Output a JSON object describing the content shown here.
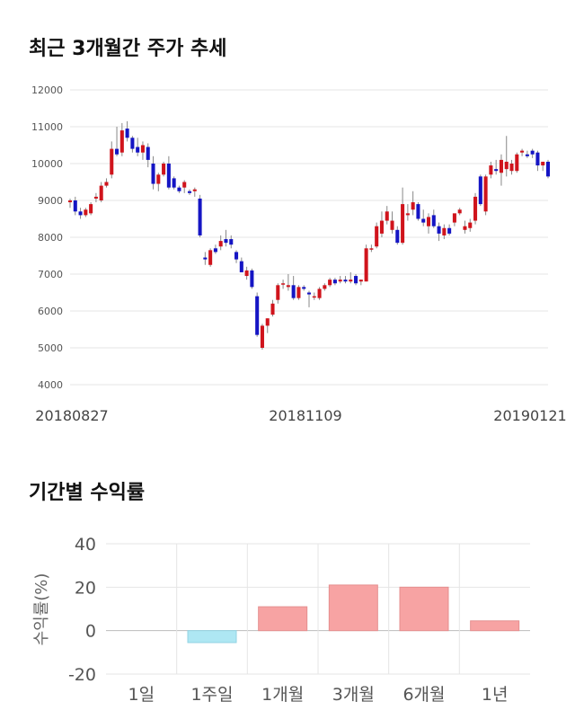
{
  "sections": {
    "price_title": "최근 3개월간 주가 추세",
    "returns_title": "기간별 수익률"
  },
  "chart_data": [
    {
      "type": "candlestick",
      "ylim": [
        4000,
        12000
      ],
      "yticks": [
        "12000",
        "11000",
        "10000",
        "9000",
        "8000",
        "7000",
        "6000",
        "5000",
        "4000"
      ],
      "xtick_labels": [
        "20180827",
        "20181109",
        "20190121"
      ],
      "grid": true,
      "colors": {
        "up": "#d0141c",
        "down": "#1515c4",
        "wick": "#888888",
        "grid": "#e5e5e5"
      },
      "ohlc": [
        [
          8950,
          9050,
          8800,
          9000
        ],
        [
          9000,
          9100,
          8600,
          8700
        ],
        [
          8700,
          8800,
          8500,
          8600
        ],
        [
          8600,
          8800,
          8550,
          8750
        ],
        [
          8650,
          8950,
          8600,
          8900
        ],
        [
          9050,
          9200,
          8950,
          9100
        ],
        [
          9000,
          9500,
          8950,
          9400
        ],
        [
          9400,
          9600,
          9350,
          9500
        ],
        [
          9700,
          10600,
          9600,
          10400
        ],
        [
          10400,
          11000,
          10200,
          10250
        ],
        [
          10300,
          11100,
          10200,
          10900
        ],
        [
          10950,
          11150,
          10600,
          10700
        ],
        [
          10700,
          10750,
          10300,
          10400
        ],
        [
          10450,
          10700,
          10200,
          10300
        ],
        [
          10300,
          10600,
          10100,
          10500
        ],
        [
          10450,
          10550,
          9900,
          10100
        ],
        [
          10000,
          10200,
          9300,
          9450
        ],
        [
          9450,
          9750,
          9250,
          9700
        ],
        [
          9700,
          10050,
          9650,
          10000
        ],
        [
          10000,
          10200,
          9300,
          9350
        ],
        [
          9600,
          9650,
          9300,
          9350
        ],
        [
          9350,
          9400,
          9200,
          9250
        ],
        [
          9350,
          9550,
          9200,
          9500
        ],
        [
          9250,
          9300,
          9150,
          9200
        ],
        [
          9250,
          9350,
          9100,
          9300
        ],
        [
          9050,
          9150,
          8000,
          8050
        ],
        [
          7450,
          7600,
          7250,
          7400
        ],
        [
          7250,
          7700,
          7200,
          7650
        ],
        [
          7700,
          7800,
          7550,
          7600
        ],
        [
          7750,
          8050,
          7650,
          7900
        ],
        [
          7950,
          8200,
          7750,
          7850
        ],
        [
          7950,
          8050,
          7700,
          7800
        ],
        [
          7600,
          7650,
          7300,
          7400
        ],
        [
          7350,
          7450,
          7050,
          7050
        ],
        [
          6950,
          7200,
          6850,
          7100
        ],
        [
          7100,
          7150,
          6600,
          6650
        ],
        [
          6400,
          6500,
          5300,
          5350
        ],
        [
          5000,
          5650,
          4950,
          5600
        ],
        [
          5600,
          5800,
          5400,
          5800
        ],
        [
          5900,
          6300,
          5850,
          6200
        ],
        [
          6300,
          6750,
          6200,
          6700
        ],
        [
          6750,
          6850,
          6600,
          6750
        ],
        [
          6650,
          7000,
          6550,
          6700
        ],
        [
          6700,
          6950,
          6300,
          6350
        ],
        [
          6350,
          6700,
          6300,
          6650
        ],
        [
          6650,
          6700,
          6550,
          6600
        ],
        [
          6500,
          6550,
          6100,
          6450
        ],
        [
          6400,
          6500,
          6300,
          6400
        ],
        [
          6350,
          6650,
          6300,
          6600
        ],
        [
          6600,
          6750,
          6550,
          6700
        ],
        [
          6700,
          6900,
          6650,
          6850
        ],
        [
          6850,
          6900,
          6700,
          6750
        ],
        [
          6800,
          6950,
          6750,
          6850
        ],
        [
          6850,
          6950,
          6750,
          6800
        ],
        [
          6800,
          7050,
          6750,
          6850
        ],
        [
          6950,
          7000,
          6700,
          6750
        ],
        [
          6800,
          6850,
          6700,
          6850
        ],
        [
          6800,
          7800,
          6800,
          7700
        ],
        [
          7700,
          7800,
          7600,
          7700
        ],
        [
          7750,
          8400,
          7700,
          8300
        ],
        [
          8100,
          8700,
          8000,
          8450
        ],
        [
          8450,
          8850,
          8350,
          8700
        ],
        [
          8200,
          8700,
          8100,
          8450
        ],
        [
          8200,
          8300,
          7800,
          7850
        ],
        [
          7850,
          9350,
          7800,
          8900
        ],
        [
          8600,
          8900,
          8450,
          8650
        ],
        [
          8750,
          9250,
          8600,
          8950
        ],
        [
          8900,
          8950,
          8450,
          8500
        ],
        [
          8500,
          8750,
          8300,
          8400
        ],
        [
          8300,
          8650,
          8100,
          8550
        ],
        [
          8600,
          8750,
          8250,
          8300
        ],
        [
          8300,
          8400,
          7900,
          8100
        ],
        [
          8050,
          8350,
          7950,
          8250
        ],
        [
          8250,
          8350,
          8050,
          8100
        ],
        [
          8400,
          8600,
          8300,
          8650
        ],
        [
          8650,
          8800,
          8600,
          8750
        ],
        [
          8200,
          8450,
          8100,
          8300
        ],
        [
          8250,
          8500,
          8150,
          8400
        ],
        [
          8450,
          9200,
          8350,
          9100
        ],
        [
          9650,
          9700,
          8850,
          8900
        ],
        [
          8700,
          9700,
          8600,
          9650
        ],
        [
          9700,
          10050,
          9600,
          9950
        ],
        [
          9850,
          10100,
          9700,
          9800
        ],
        [
          9750,
          10250,
          9400,
          10100
        ],
        [
          9850,
          10750,
          9650,
          10050
        ],
        [
          9800,
          10100,
          9700,
          10000
        ],
        [
          9800,
          10300,
          9750,
          10250
        ],
        [
          10300,
          10400,
          10200,
          10350
        ],
        [
          10250,
          10350,
          10150,
          10200
        ],
        [
          10350,
          10400,
          10150,
          10250
        ],
        [
          10300,
          10350,
          9800,
          9950
        ],
        [
          9950,
          10050,
          9800,
          10050
        ],
        [
          10050,
          10100,
          9600,
          9650
        ]
      ]
    },
    {
      "type": "bar",
      "categories": [
        "1일",
        "1주일",
        "1개월",
        "3개월",
        "6개월",
        "1년"
      ],
      "values": [
        0,
        -5.5,
        11,
        21,
        20,
        4.5
      ],
      "ylim": [
        -20,
        40
      ],
      "yticks": [
        "40",
        "20",
        "0",
        "-20"
      ],
      "ylabel": "수익률(%)",
      "grid": true,
      "colors": {
        "positive": "#f7a3a3",
        "negative": "#aee7f3",
        "grid": "#e5e5e5",
        "zero": "#bbbbbb"
      }
    }
  ]
}
